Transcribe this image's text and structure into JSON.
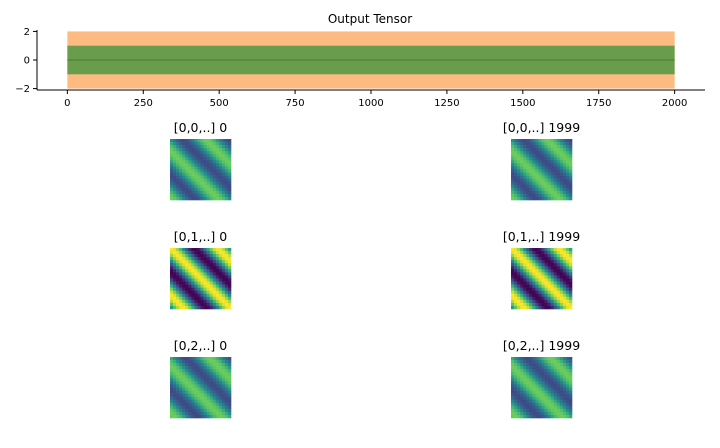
{
  "chart_data": [
    {
      "type": "area",
      "title": "Output Tensor",
      "xlabel": "",
      "ylabel": "",
      "xlim": [
        -100,
        2100
      ],
      "ylim": [
        -2.1,
        2.1
      ],
      "xticks": [
        0,
        250,
        500,
        750,
        1000,
        1250,
        1500,
        1750,
        2000
      ],
      "yticks": [
        -2,
        0,
        2
      ],
      "grid": false,
      "legend": "none",
      "x": [
        0,
        2000
      ],
      "bands": [
        {
          "lower": -2.0,
          "upper": 2.0,
          "color": "#fdae6b"
        },
        {
          "lower": -1.0,
          "upper": 1.0,
          "color": "#5a9a45"
        }
      ],
      "series": [
        {
          "values": [
            0,
            0
          ],
          "color": "#3f7a35"
        }
      ]
    },
    {
      "type": "heatmap",
      "colormap": "viridis",
      "panels": [
        {
          "title": "[0,0,..] 0",
          "channel": 0,
          "step": 0,
          "phase": 0.0,
          "amplitude": 0.55
        },
        {
          "title": "[0,0,..] 1999",
          "channel": 0,
          "step": 1999,
          "phase": 0.0,
          "amplitude": 0.55
        },
        {
          "title": "[0,1,..] 0",
          "channel": 1,
          "step": 0,
          "phase": 1.6,
          "amplitude": 1.0
        },
        {
          "title": "[0,1,..] 1999",
          "channel": 1,
          "step": 1999,
          "phase": 1.6,
          "amplitude": 1.0
        },
        {
          "title": "[0,2,..] 0",
          "channel": 2,
          "step": 0,
          "phase": 0.4,
          "amplitude": 0.55
        },
        {
          "title": "[0,2,..] 1999",
          "channel": 2,
          "step": 1999,
          "phase": 0.4,
          "amplitude": 0.55
        }
      ]
    }
  ]
}
